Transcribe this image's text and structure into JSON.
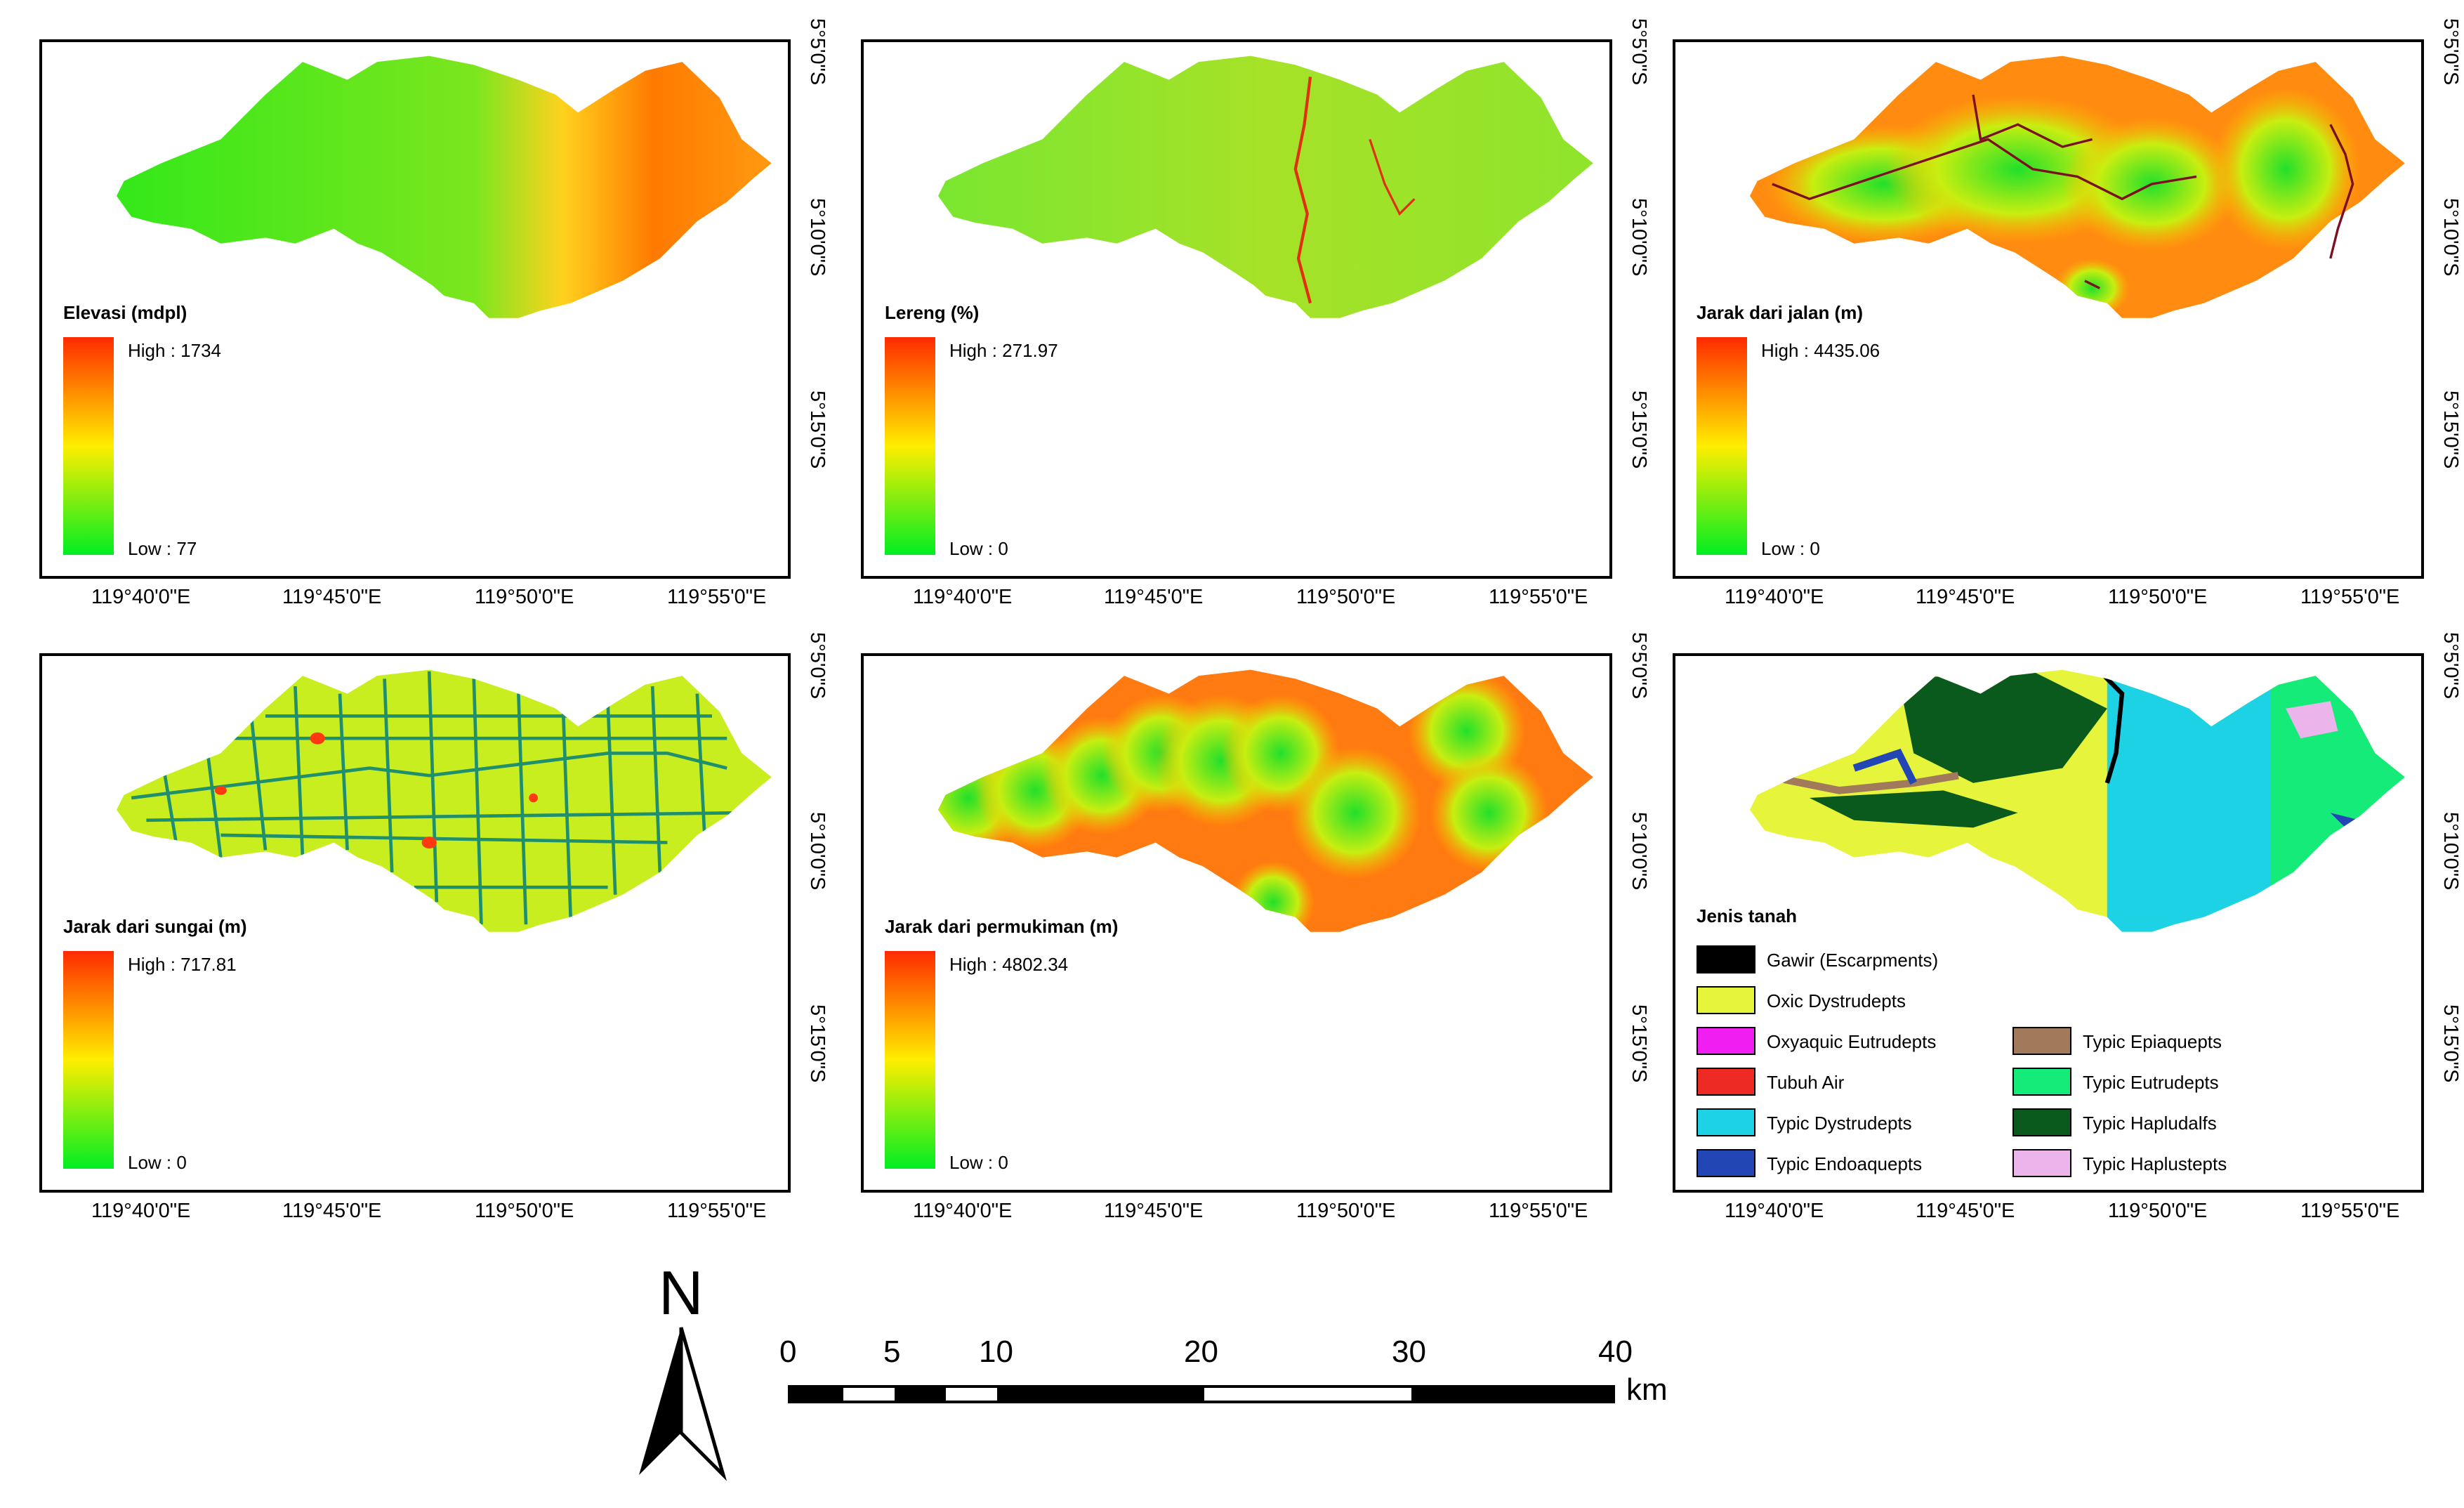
{
  "panels": [
    {
      "title": "Elevasi (mdpl)",
      "high": "High : 1734",
      "low": "Low : 77"
    },
    {
      "title": "Lereng (%)",
      "high": "High : 271.97",
      "low": "Low : 0"
    },
    {
      "title": "Jarak dari jalan (m)",
      "high": "High : 4435.06",
      "low": "Low : 0"
    },
    {
      "title": "Jarak dari sungai (m)",
      "high": "High : 717.81",
      "low": "Low : 0"
    },
    {
      "title": "Jarak dari permukiman (m)",
      "high": "High : 4802.34",
      "low": "Low : 0"
    },
    {
      "title": "Jenis tanah"
    }
  ],
  "x_ticks": [
    "119°40'0\"E",
    "119°45'0\"E",
    "119°50'0\"E",
    "119°55'0\"E"
  ],
  "y_ticks": [
    "5°5'0\"S",
    "5°10'0\"S",
    "5°15'0\"S"
  ],
  "soil_legend": [
    {
      "label": "Gawir (Escarpments)",
      "color": "#000000"
    },
    {
      "label": "Oxic Dystrudepts",
      "color": "#e6f53c"
    },
    {
      "label": "Oxyaquic Eutrudepts",
      "color": "#f01ef0"
    },
    {
      "label": "Tubuh Air",
      "color": "#ee2a24"
    },
    {
      "label": "Typic Dystrudepts",
      "color": "#1ed2e6"
    },
    {
      "label": "Typic Endoaquepts",
      "color": "#2246b4"
    },
    {
      "label": "Typic Epiaquepts",
      "color": "#a07a5a"
    },
    {
      "label": "Typic Eutrudepts",
      "color": "#14eb78"
    },
    {
      "label": "Typic Hapludalfs",
      "color": "#0a5a1e"
    },
    {
      "label": "Typic Haplustepts",
      "color": "#ebb4eb"
    }
  ],
  "north_arrow": {
    "label": "N"
  },
  "scale_bar": {
    "ticks": [
      "0",
      "5",
      "10",
      "20",
      "30",
      "40"
    ],
    "unit": "km"
  },
  "colors": {
    "ramp_high": "#ff0000",
    "ramp_mid": "#ffff00",
    "ramp_low": "#00ff00",
    "river": "#1f8f6e",
    "road": "#7a1020"
  }
}
